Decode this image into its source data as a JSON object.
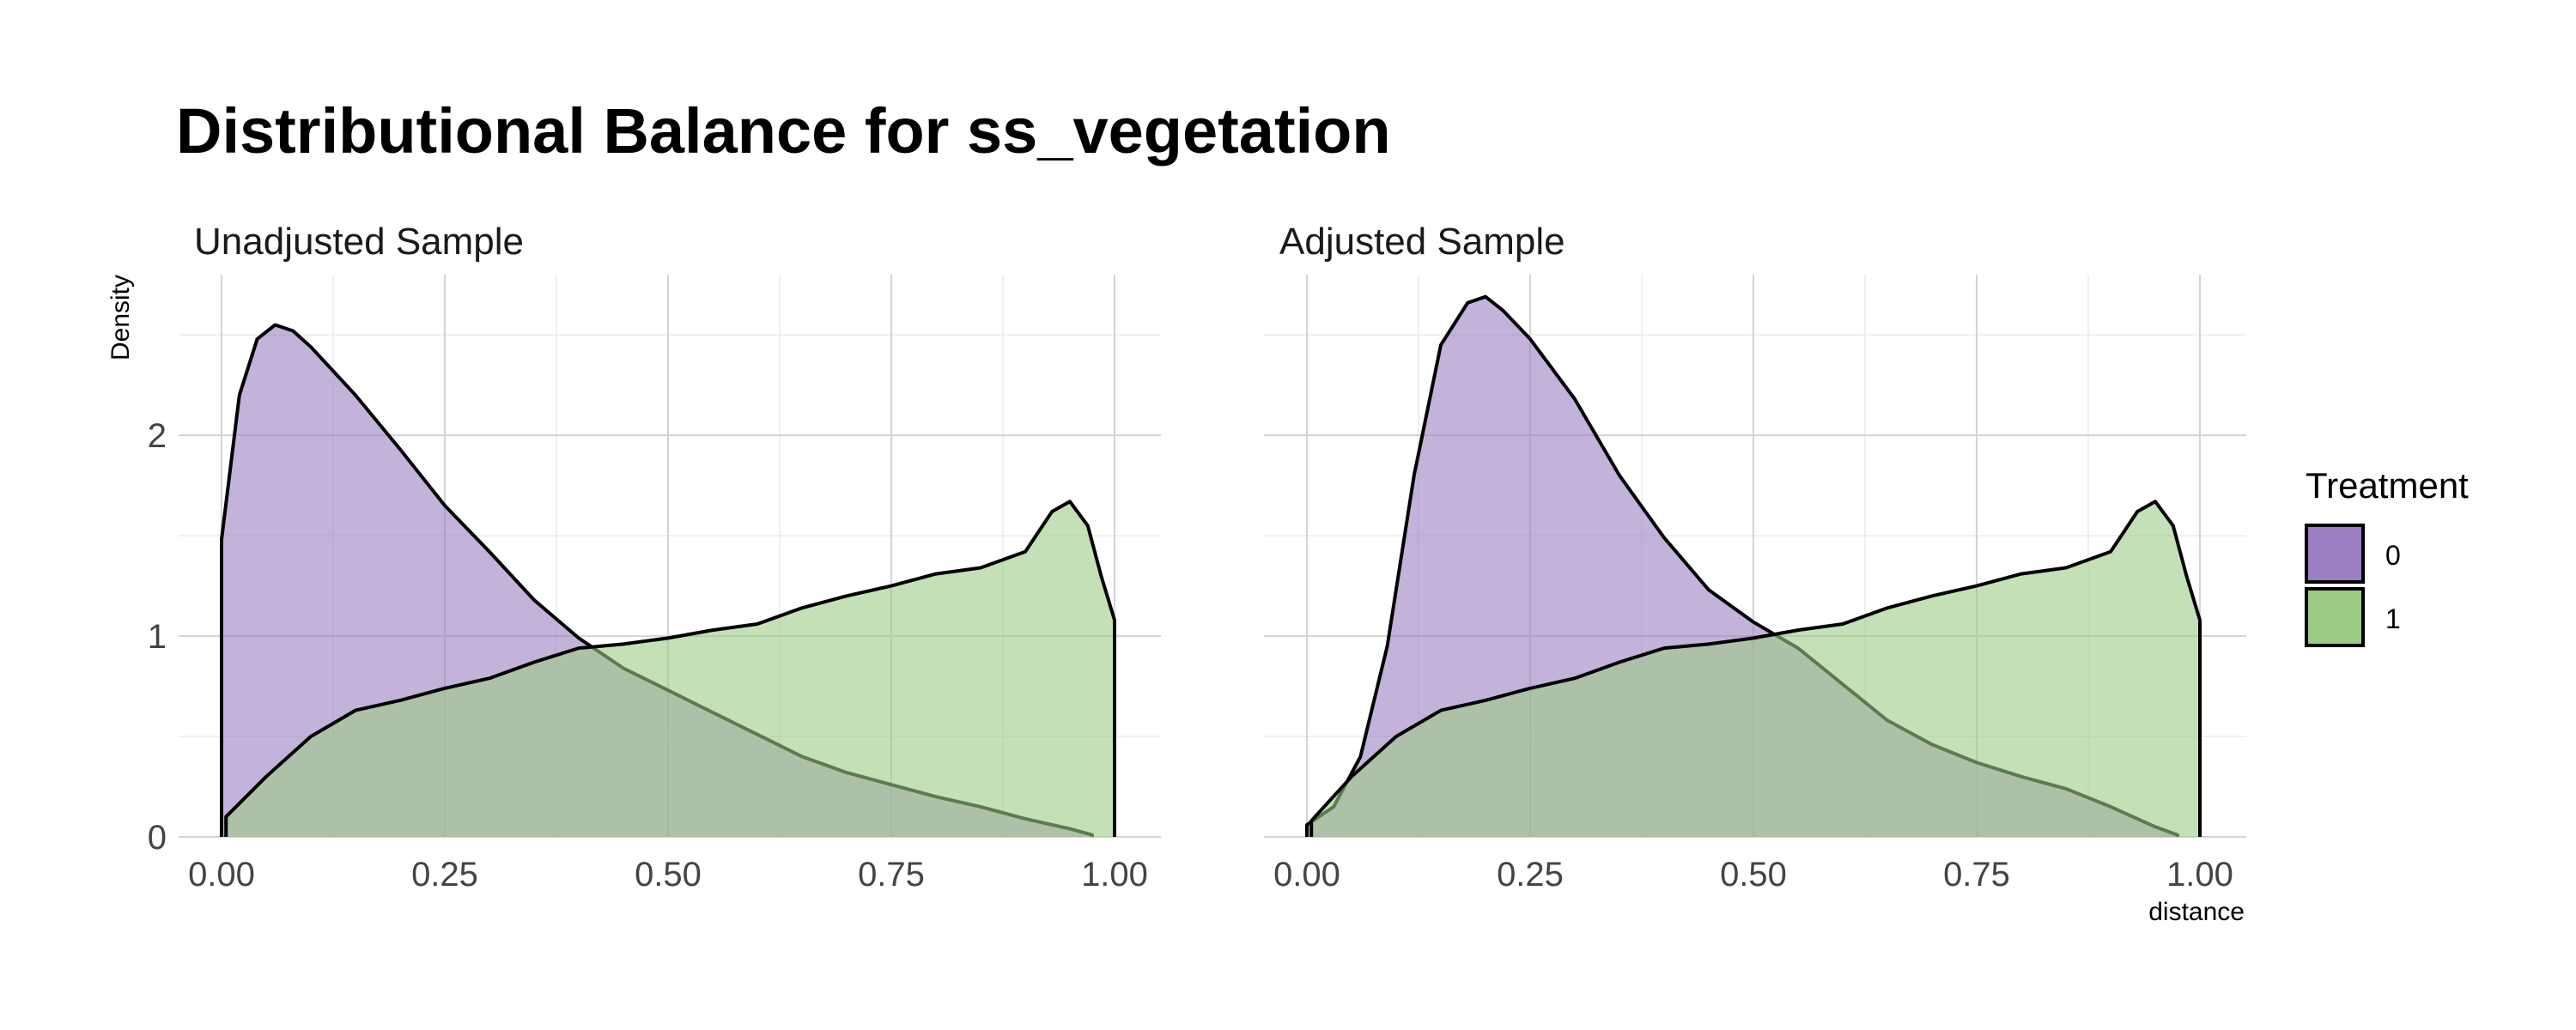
{
  "title": "Distributional Balance for ss_vegetation",
  "ylabel": "Density",
  "xlabel": "distance",
  "legend": {
    "title": "Treatment",
    "placement": "right",
    "items": [
      {
        "label": "0",
        "color": "#9b7fc2"
      },
      {
        "label": "1",
        "color": "#9ccb86"
      }
    ]
  },
  "chart_data": [
    {
      "type": "area",
      "title": "Unadjusted Sample",
      "xlim": [
        0,
        1
      ],
      "ylim": [
        0,
        2.8
      ],
      "x_ticks": [
        "0.00",
        "0.25",
        "0.50",
        "0.75",
        "1.00"
      ],
      "y_ticks": [
        "0",
        "1",
        "2"
      ],
      "grid": true,
      "series": [
        {
          "name": "0",
          "color": "#9b7fc2",
          "x": [
            0.0,
            0.02,
            0.04,
            0.06,
            0.08,
            0.1,
            0.15,
            0.2,
            0.25,
            0.3,
            0.35,
            0.4,
            0.45,
            0.5,
            0.55,
            0.6,
            0.65,
            0.7,
            0.75,
            0.8,
            0.85,
            0.9,
            0.95,
            0.975
          ],
          "y": [
            1.48,
            2.2,
            2.48,
            2.55,
            2.52,
            2.44,
            2.2,
            1.93,
            1.65,
            1.42,
            1.18,
            0.99,
            0.84,
            0.73,
            0.62,
            0.51,
            0.4,
            0.32,
            0.26,
            0.2,
            0.15,
            0.09,
            0.04,
            0.01
          ]
        },
        {
          "name": "1",
          "color": "#9ccb86",
          "x": [
            0.005,
            0.05,
            0.1,
            0.15,
            0.2,
            0.25,
            0.3,
            0.35,
            0.4,
            0.45,
            0.5,
            0.55,
            0.6,
            0.65,
            0.7,
            0.75,
            0.8,
            0.85,
            0.9,
            0.93,
            0.95,
            0.97,
            0.985,
            1.0
          ],
          "y": [
            0.1,
            0.3,
            0.5,
            0.63,
            0.68,
            0.74,
            0.79,
            0.87,
            0.94,
            0.96,
            0.99,
            1.03,
            1.06,
            1.14,
            1.2,
            1.25,
            1.31,
            1.34,
            1.42,
            1.62,
            1.67,
            1.55,
            1.3,
            1.08
          ]
        }
      ]
    },
    {
      "type": "area",
      "title": "Adjusted Sample",
      "xlim": [
        0,
        1
      ],
      "ylim": [
        0,
        2.8
      ],
      "x_ticks": [
        "0.00",
        "0.25",
        "0.50",
        "0.75",
        "1.00"
      ],
      "y_ticks": [
        "0",
        "1",
        "2"
      ],
      "grid": true,
      "series": [
        {
          "name": "0",
          "color": "#9b7fc2",
          "x": [
            0.0,
            0.03,
            0.06,
            0.09,
            0.12,
            0.15,
            0.18,
            0.2,
            0.22,
            0.25,
            0.3,
            0.35,
            0.4,
            0.45,
            0.5,
            0.55,
            0.6,
            0.65,
            0.7,
            0.75,
            0.8,
            0.85,
            0.9,
            0.95,
            0.975
          ],
          "y": [
            0.06,
            0.15,
            0.4,
            0.95,
            1.8,
            2.45,
            2.66,
            2.69,
            2.62,
            2.48,
            2.18,
            1.8,
            1.49,
            1.23,
            1.07,
            0.94,
            0.76,
            0.58,
            0.46,
            0.37,
            0.3,
            0.24,
            0.15,
            0.05,
            0.01
          ]
        },
        {
          "name": "1",
          "color": "#9ccb86",
          "x": [
            0.005,
            0.05,
            0.1,
            0.15,
            0.2,
            0.25,
            0.3,
            0.35,
            0.4,
            0.45,
            0.5,
            0.55,
            0.6,
            0.65,
            0.7,
            0.75,
            0.8,
            0.85,
            0.9,
            0.93,
            0.95,
            0.97,
            0.985,
            1.0
          ],
          "y": [
            0.08,
            0.3,
            0.5,
            0.63,
            0.68,
            0.74,
            0.79,
            0.87,
            0.94,
            0.96,
            0.99,
            1.03,
            1.06,
            1.14,
            1.2,
            1.25,
            1.31,
            1.34,
            1.42,
            1.62,
            1.67,
            1.55,
            1.3,
            1.08
          ]
        }
      ]
    }
  ]
}
